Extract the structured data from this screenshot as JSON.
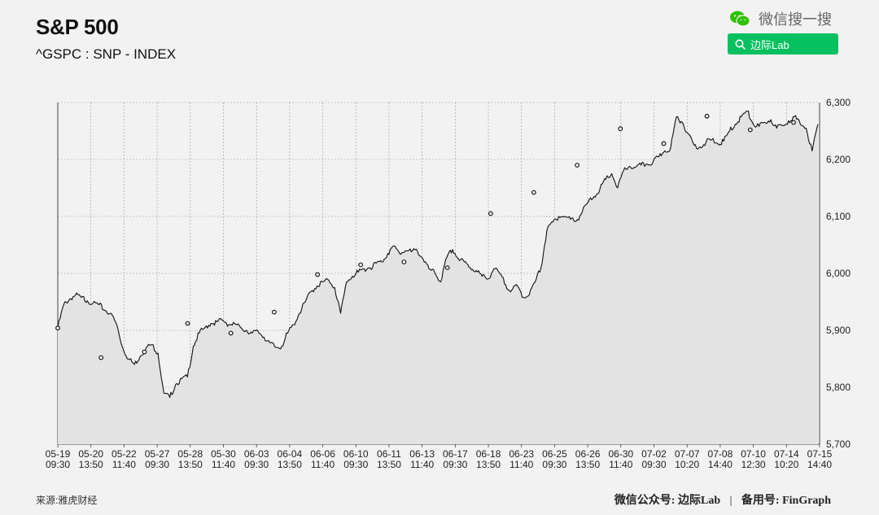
{
  "header": {
    "title": "S&P 500",
    "subtitle": "^GSPC : SNP - INDEX"
  },
  "wechat": {
    "brand_label": "微信搜一搜",
    "search_label": "边际Lab",
    "accent": "#07c160"
  },
  "footer": {
    "source": "来源:雅虎财经",
    "account_prefix": "微信公众号:",
    "account_name": "边际Lab",
    "separator": "|",
    "backup_prefix": "备用号:",
    "backup_name": "FinGraph"
  },
  "chart_data": {
    "type": "line",
    "title": "S&P 500",
    "subtitle": "^GSPC : SNP - INDEX",
    "ylim": [
      5700,
      6300
    ],
    "y_ticks": [
      5700,
      5800,
      5900,
      6000,
      6100,
      6200,
      6300
    ],
    "y_tick_labels": [
      "5,700",
      "5,800",
      "5,900",
      "6,000",
      "6,100",
      "6,200",
      "6,300"
    ],
    "y_axis_position": "right",
    "grid": true,
    "x_tick_labels": [
      [
        "05-19",
        "09:30"
      ],
      [
        "05-20",
        "13:50"
      ],
      [
        "05-22",
        "11:40"
      ],
      [
        "05-27",
        "09:30"
      ],
      [
        "05-28",
        "13:50"
      ],
      [
        "05-30",
        "11:40"
      ],
      [
        "06-03",
        "09:30"
      ],
      [
        "06-04",
        "13:50"
      ],
      [
        "06-06",
        "11:40"
      ],
      [
        "06-10",
        "09:30"
      ],
      [
        "06-11",
        "13:50"
      ],
      [
        "06-13",
        "11:40"
      ],
      [
        "06-17",
        "09:30"
      ],
      [
        "06-18",
        "13:50"
      ],
      [
        "06-23",
        "11:40"
      ],
      [
        "06-25",
        "09:30"
      ],
      [
        "06-26",
        "13:50"
      ],
      [
        "06-30",
        "11:40"
      ],
      [
        "07-02",
        "09:30"
      ],
      [
        "07-07",
        "10:20"
      ],
      [
        "07-08",
        "14:40"
      ],
      [
        "07-10",
        "12:30"
      ],
      [
        "07-14",
        "10:20"
      ],
      [
        "07-15",
        "14:40"
      ]
    ],
    "series": [
      {
        "values": [
          5904,
          5945,
          5955,
          5962,
          5958,
          5952,
          5948,
          5945,
          5935,
          5930,
          5910,
          5870,
          5850,
          5840,
          5855,
          5870,
          5875,
          5860,
          5790,
          5782,
          5805,
          5815,
          5818,
          5872,
          5895,
          5905,
          5912,
          5915,
          5918,
          5910,
          5912,
          5905,
          5900,
          5895,
          5898,
          5888,
          5878,
          5870,
          5872,
          5895,
          5910,
          5930,
          5950,
          5968,
          5978,
          5985,
          5988,
          5975,
          5930,
          5985,
          5995,
          6002,
          6008,
          6010,
          6018,
          6020,
          6035,
          6048,
          6035,
          6040,
          6038,
          6040,
          6025,
          6008,
          6000,
          5985,
          6028,
          6042,
          6025,
          6020,
          6010,
          6005,
          5995,
          5990,
          6008,
          6000,
          5980,
          5970,
          5978,
          5958,
          5962,
          5985,
          6010,
          6075,
          6090,
          6100,
          6100,
          6095,
          6092,
          6108,
          6125,
          6135,
          6148,
          6165,
          6175,
          6150,
          6180,
          6188,
          6186,
          6190,
          6192,
          6195,
          6205,
          6215,
          6220,
          6275,
          6265,
          6245,
          6225,
          6222,
          6230,
          6235,
          6228,
          6232,
          6250,
          6262,
          6275,
          6285,
          6262,
          6258,
          6265,
          6270,
          6255,
          6260,
          6268,
          6275,
          6262,
          6255,
          6215,
          6262
        ]
      }
    ],
    "markers": [
      5904,
      5852,
      5862,
      5912,
      5895,
      5932,
      5998,
      6015,
      6020,
      6010,
      6105,
      6142,
      6190,
      6254,
      6228,
      6276,
      6252,
      6265
    ],
    "colors": {
      "line": "#111111",
      "area": "#e3e3e3",
      "grid": "#9a9a9a",
      "background": "#f2f2f2"
    }
  }
}
